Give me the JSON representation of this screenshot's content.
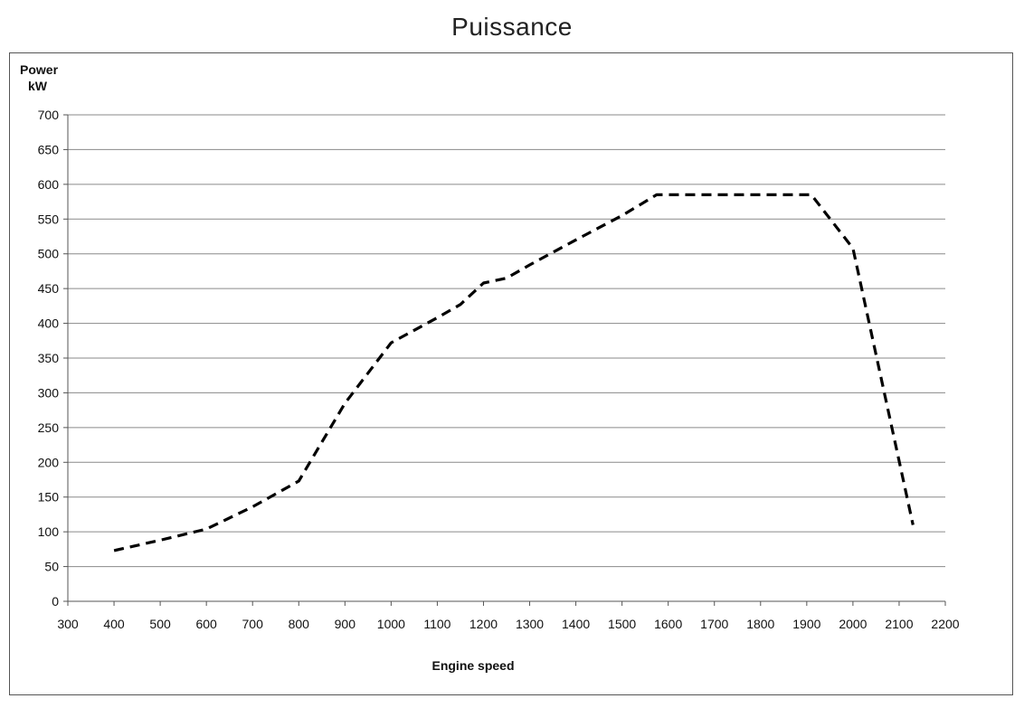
{
  "title": "Puissance",
  "chart_data": {
    "type": "line",
    "ylabel_line1": "Power",
    "ylabel_line2": "kW",
    "xlabel": "Engine speed",
    "xlim": [
      300,
      2200
    ],
    "ylim": [
      0,
      700
    ],
    "x_ticks": [
      "300",
      "400",
      "500",
      "600",
      "700",
      "800",
      "900",
      "1000",
      "1100",
      "1200",
      "1300",
      "1400",
      "1500",
      "1600",
      "1700",
      "1800",
      "1900",
      "2000",
      "2100",
      "2200"
    ],
    "y_ticks": [
      "0",
      "50",
      "100",
      "150",
      "200",
      "250",
      "300",
      "350",
      "400",
      "450",
      "500",
      "550",
      "600",
      "650",
      "700"
    ],
    "grid": "horizontal",
    "legend": "none",
    "series": [
      {
        "line_style": "dashed",
        "color": "#000000",
        "x": [
          400,
          500,
          600,
          700,
          800,
          900,
          1000,
          1100,
          1150,
          1200,
          1250,
          1300,
          1400,
          1500,
          1575,
          1600,
          1700,
          1800,
          1900,
          1910,
          2000,
          2130
        ],
        "y": [
          73,
          88,
          104,
          136,
          173,
          285,
          372,
          408,
          427,
          458,
          465,
          484,
          520,
          555,
          585,
          585,
          585,
          585,
          585,
          585,
          508,
          110
        ]
      }
    ]
  }
}
